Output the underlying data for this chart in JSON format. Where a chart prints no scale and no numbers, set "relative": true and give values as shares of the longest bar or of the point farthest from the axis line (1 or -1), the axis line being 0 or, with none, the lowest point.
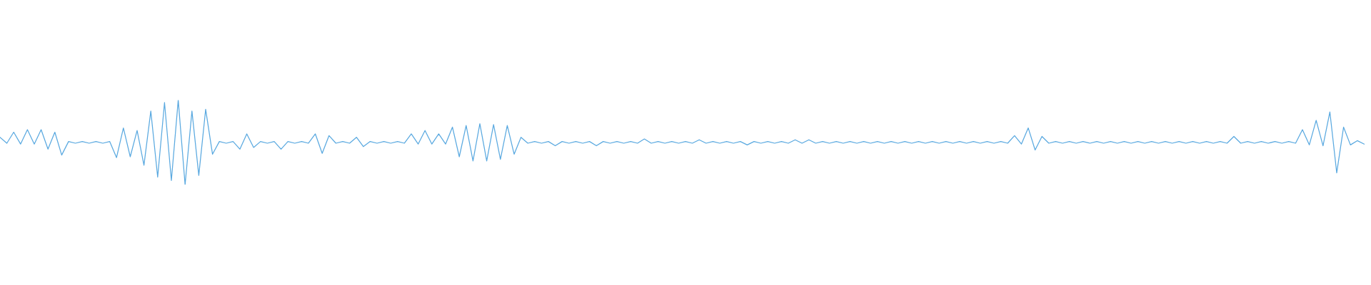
{
  "chart_data": {
    "type": "line",
    "relative": true,
    "color": "#5aa9e0",
    "categories": [
      null,
      null,
      null,
      null,
      null,
      null,
      null,
      null,
      null,
      null,
      null,
      null,
      null,
      null,
      null,
      null,
      null,
      null,
      null,
      null,
      null,
      null,
      null,
      null,
      null,
      null,
      null,
      null,
      null,
      null,
      null,
      null,
      null,
      null,
      null,
      null,
      null,
      null,
      null,
      null,
      null,
      null,
      null,
      null,
      null,
      null,
      null,
      null,
      null,
      null,
      null,
      null,
      null,
      null,
      null,
      null,
      null,
      null,
      null,
      null,
      null,
      null,
      null,
      null,
      null,
      null,
      null,
      null,
      null,
      null,
      null,
      null,
      null,
      null,
      null,
      null,
      null,
      null,
      null,
      null,
      null,
      null,
      null,
      null,
      null,
      null,
      null,
      null,
      null,
      null,
      null,
      null,
      null,
      null,
      null,
      null,
      null,
      null,
      null,
      null,
      null,
      null,
      null,
      null,
      null,
      null,
      null,
      null,
      null,
      null,
      null,
      null,
      null,
      null,
      null,
      null,
      null,
      null,
      null,
      null,
      null,
      null,
      null,
      null,
      null,
      null,
      null,
      null,
      null,
      null,
      null,
      null,
      null,
      null,
      null,
      null,
      null,
      null,
      null,
      null,
      null,
      null,
      null,
      null,
      null,
      null,
      null,
      null,
      null,
      null,
      null,
      null,
      null,
      null,
      null,
      null,
      null,
      null,
      null,
      null,
      null,
      null,
      null,
      null,
      null,
      null,
      null,
      null,
      null,
      null,
      null,
      null,
      null,
      null,
      null,
      null,
      null,
      null,
      null,
      null,
      null,
      null,
      null,
      null,
      null,
      null,
      null,
      null,
      null,
      null,
      null,
      null,
      null,
      null,
      null,
      null,
      null,
      null,
      null,
      null
    ],
    "values": [
      0.56,
      0.49,
      0.62,
      0.48,
      0.65,
      0.48,
      0.65,
      0.42,
      0.62,
      0.35,
      0.51,
      0.49,
      0.51,
      0.49,
      0.51,
      0.49,
      0.51,
      0.32,
      0.67,
      0.33,
      0.64,
      0.23,
      0.87,
      0.09,
      0.97,
      0.05,
      1.0,
      0.0,
      0.87,
      0.11,
      0.89,
      0.36,
      0.51,
      0.49,
      0.51,
      0.42,
      0.6,
      0.44,
      0.51,
      0.49,
      0.51,
      0.42,
      0.51,
      0.49,
      0.51,
      0.49,
      0.6,
      0.37,
      0.58,
      0.49,
      0.51,
      0.49,
      0.56,
      0.45,
      0.51,
      0.49,
      0.51,
      0.49,
      0.51,
      0.49,
      0.6,
      0.48,
      0.64,
      0.48,
      0.6,
      0.48,
      0.68,
      0.33,
      0.7,
      0.28,
      0.72,
      0.28,
      0.71,
      0.3,
      0.7,
      0.36,
      0.56,
      0.49,
      0.51,
      0.49,
      0.51,
      0.46,
      0.51,
      0.49,
      0.51,
      0.49,
      0.51,
      0.46,
      0.51,
      0.49,
      0.51,
      0.49,
      0.51,
      0.49,
      0.54,
      0.49,
      0.51,
      0.49,
      0.51,
      0.49,
      0.51,
      0.49,
      0.53,
      0.49,
      0.51,
      0.49,
      0.51,
      0.49,
      0.51,
      0.47,
      0.51,
      0.49,
      0.51,
      0.49,
      0.51,
      0.49,
      0.53,
      0.49,
      0.53,
      0.49,
      0.51,
      0.49,
      0.51,
      0.49,
      0.51,
      0.49,
      0.51,
      0.49,
      0.51,
      0.49,
      0.51,
      0.49,
      0.51,
      0.49,
      0.51,
      0.49,
      0.51,
      0.49,
      0.51,
      0.49,
      0.51,
      0.49,
      0.51,
      0.49,
      0.51,
      0.49,
      0.51,
      0.49,
      0.58,
      0.48,
      0.67,
      0.41,
      0.57,
      0.49,
      0.51,
      0.49,
      0.51,
      0.49,
      0.51,
      0.49,
      0.51,
      0.49,
      0.51,
      0.49,
      0.51,
      0.49,
      0.51,
      0.49,
      0.51,
      0.49,
      0.51,
      0.49,
      0.51,
      0.49,
      0.51,
      0.49,
      0.51,
      0.49,
      0.51,
      0.49,
      0.57,
      0.49,
      0.51,
      0.49,
      0.51,
      0.49,
      0.51,
      0.49,
      0.51,
      0.49,
      0.65,
      0.47,
      0.76,
      0.46,
      0.86,
      0.14,
      0.68,
      0.47,
      0.52,
      0.48
    ]
  }
}
